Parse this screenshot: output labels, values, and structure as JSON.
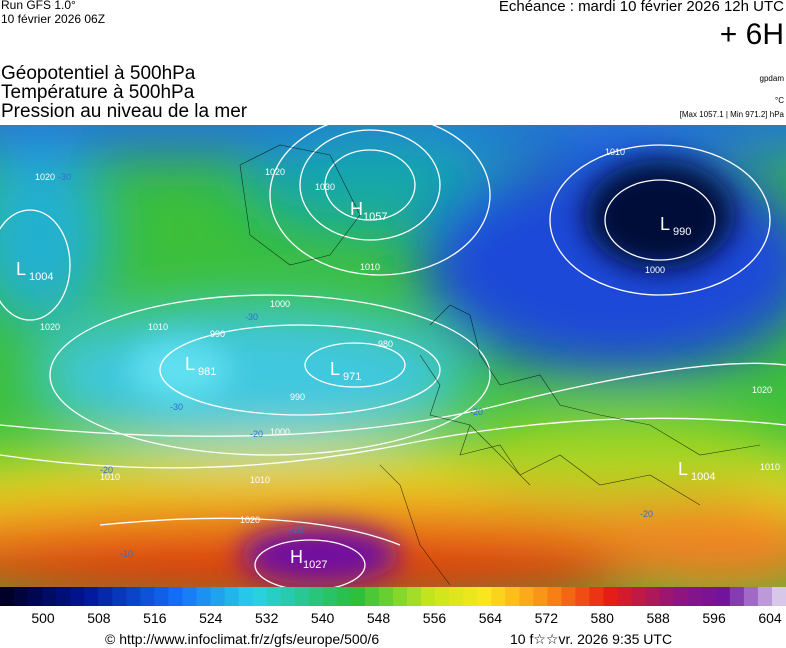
{
  "header": {
    "run": "Run GFS 1.0°",
    "run_date": "10 février 2026 06Z",
    "valid": "Echéance : mardi 10 février 2026 12h UTC",
    "step": "+ 6H",
    "titles": [
      "Géopotentiel à 500hPa",
      "Température à 500hPa",
      "Pression au niveau de la mer"
    ],
    "unit_geo": "gpdam",
    "unit_temp": "°C",
    "pressure_range": "[Max 1057.1 | Min 971.2] hPa"
  },
  "map": {
    "centers": [
      {
        "letter": "H",
        "value": "1057"
      },
      {
        "letter": "L",
        "value": "990"
      },
      {
        "letter": "L",
        "value": "1004"
      },
      {
        "letter": "L",
        "value": "981"
      },
      {
        "letter": "L",
        "value": "971"
      },
      {
        "letter": "H",
        "value": "1027"
      },
      {
        "letter": "L",
        "value": "1004"
      }
    ],
    "isobar_labels": [
      "1010",
      "1000",
      "1020",
      "1030",
      "1020",
      "1010",
      "1000",
      "990",
      "980",
      "990",
      "1000",
      "1010",
      "1020",
      "1010",
      "1020",
      "1010",
      "1020",
      "1010"
    ],
    "temp_labels": [
      "-30",
      "-30",
      "-30",
      "-20",
      "-20",
      "-20",
      "-10",
      "-10",
      "-20"
    ]
  },
  "colorbar": {
    "labels": [
      500,
      508,
      516,
      524,
      532,
      540,
      548,
      556,
      564,
      572,
      580,
      588,
      596,
      604
    ]
  },
  "footer": {
    "url": "© http://www.infoclimat.fr/z/gfs/europe/500/6",
    "time": "10 f☆☆vr. 2026  9:35 UTC"
  }
}
